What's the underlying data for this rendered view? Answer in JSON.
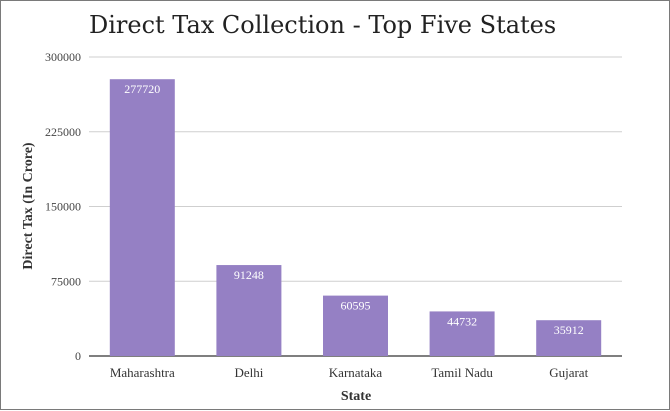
{
  "chart_data": {
    "type": "bar",
    "title": "Direct Tax Collection - Top Five States",
    "xlabel": "State",
    "ylabel": "Direct Tax (In Crore)",
    "categories": [
      "Maharashtra",
      "Delhi",
      "Karnataka",
      "Tamil Nadu",
      "Gujarat"
    ],
    "values": [
      277720,
      91248,
      60595,
      44732,
      35912
    ],
    "ylim": [
      0,
      300000
    ],
    "yticks": [
      "0",
      "75000",
      "150000",
      "225000",
      "300000"
    ],
    "grid": true,
    "legend": "none",
    "bar_color": "#9580c4"
  }
}
